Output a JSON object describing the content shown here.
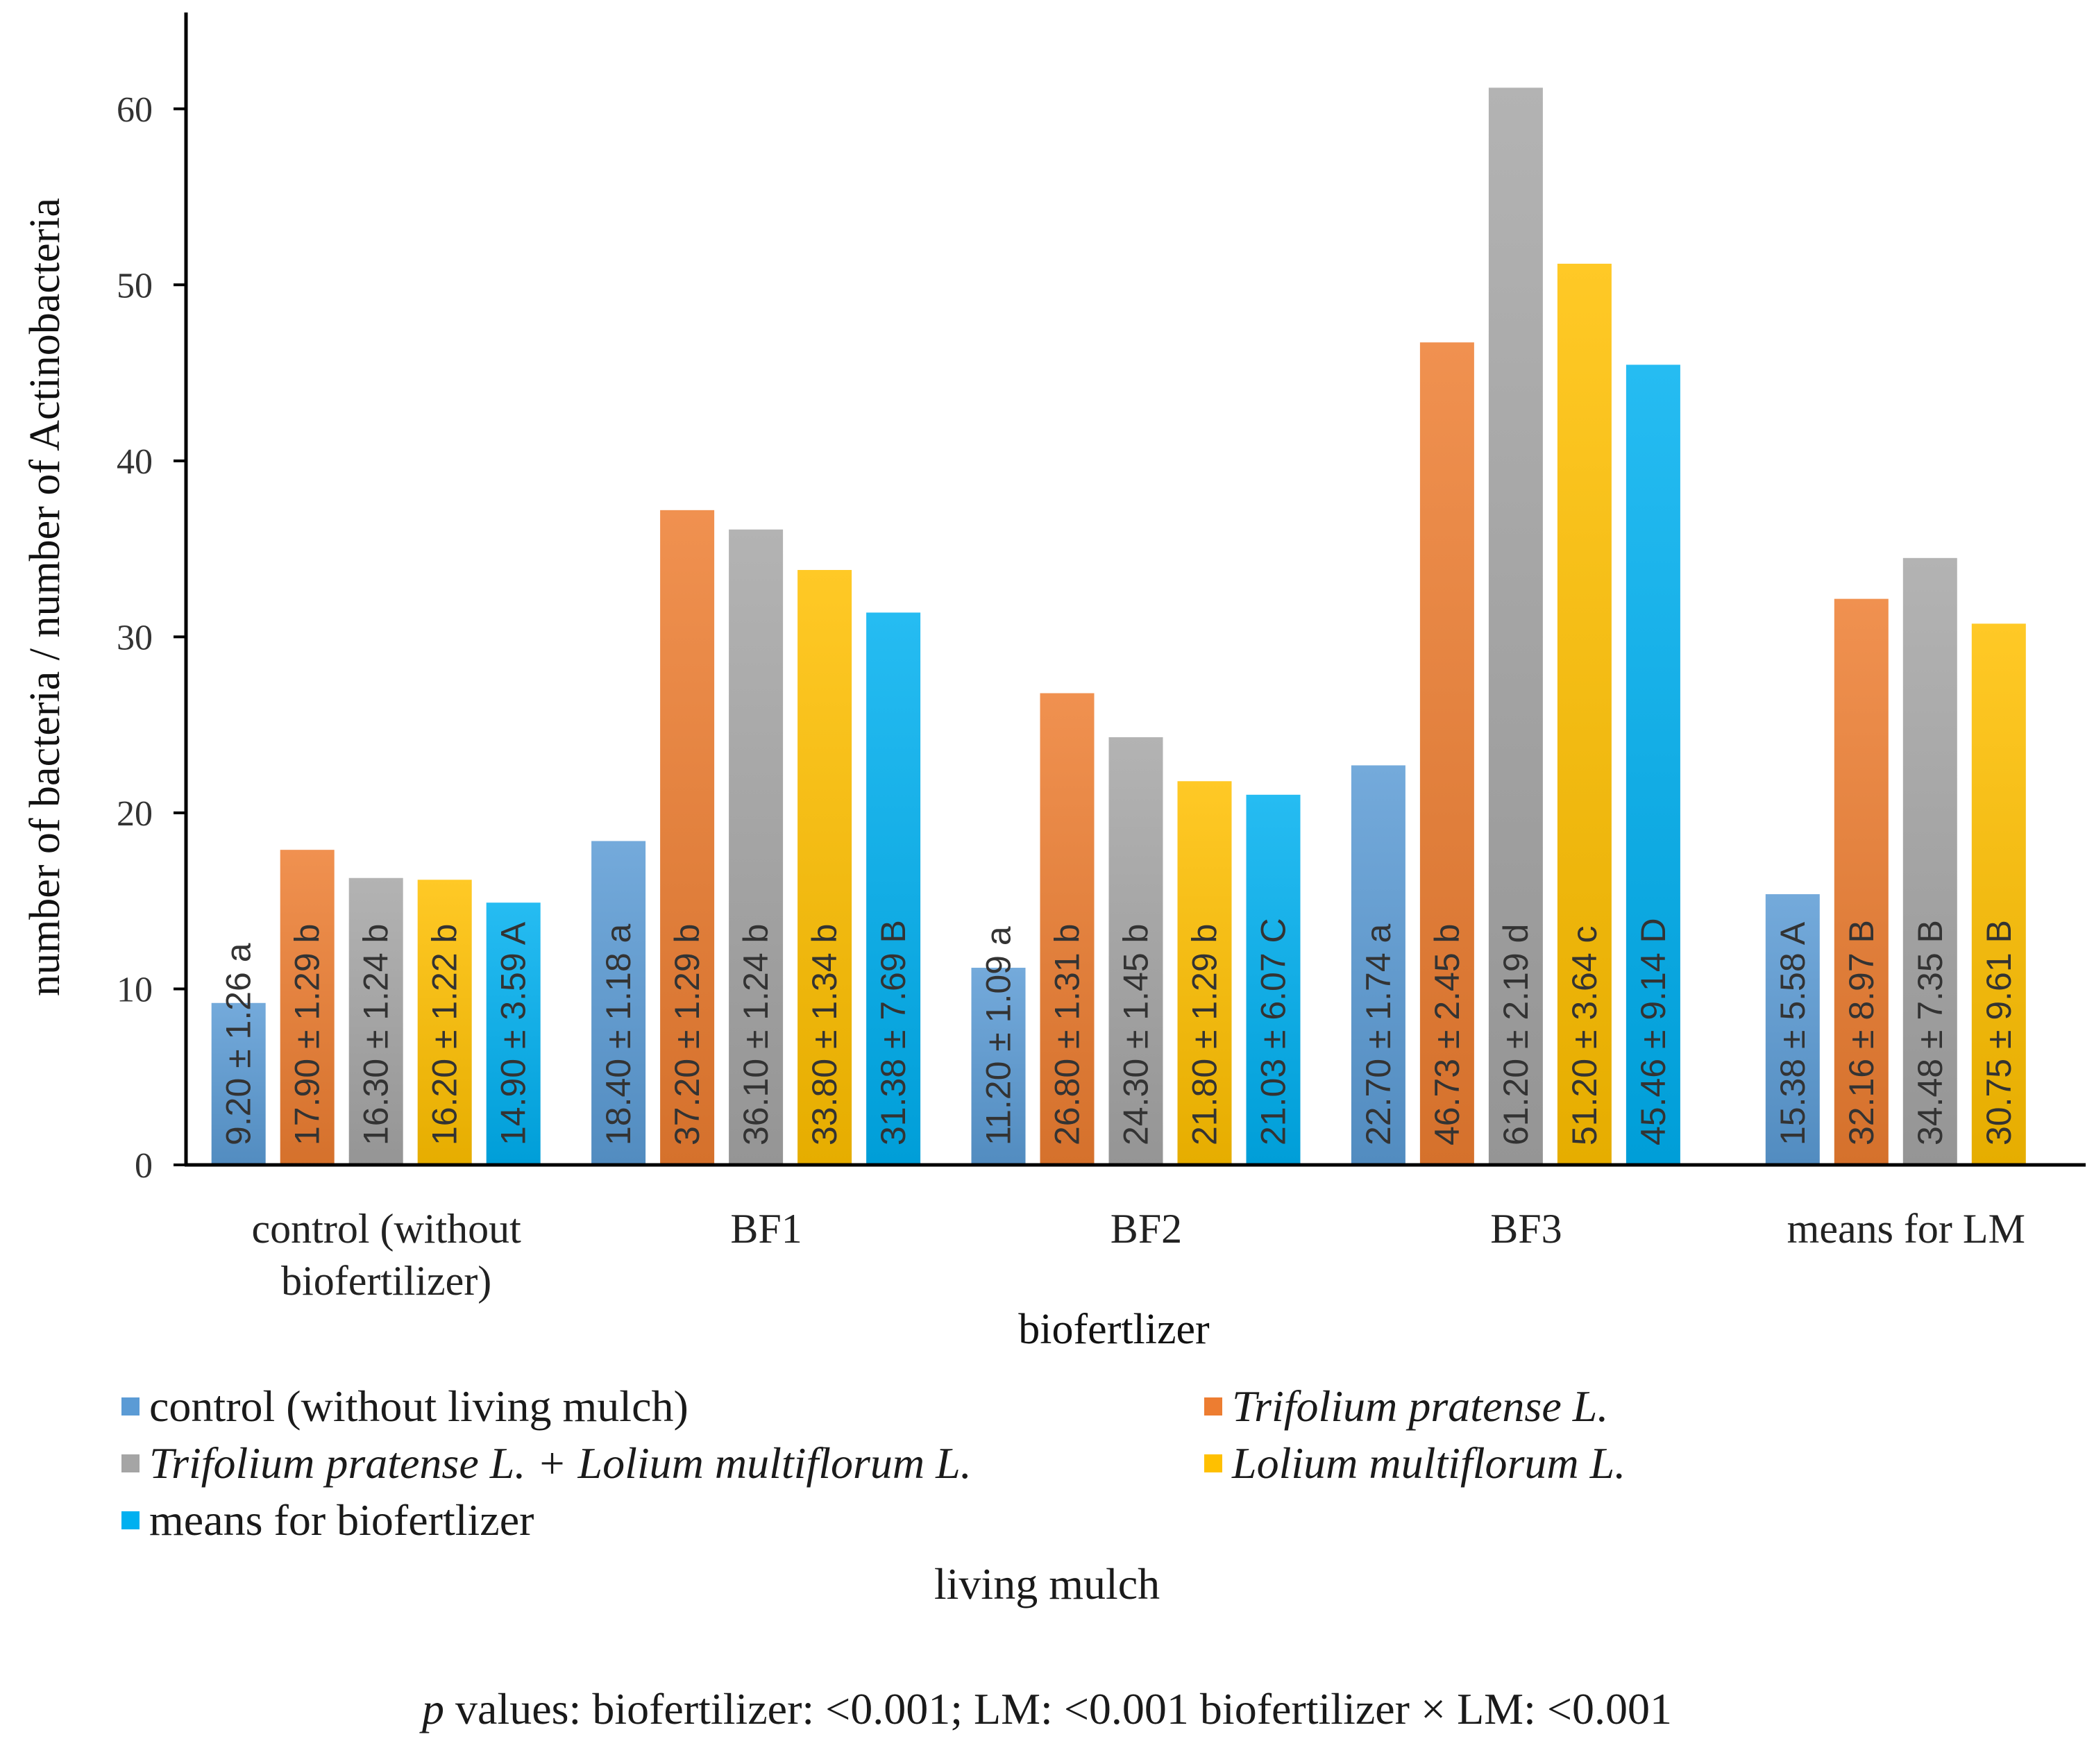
{
  "chart_data": {
    "type": "bar",
    "categories": [
      {
        "line1": "control (without",
        "line2": "biofertilizer)"
      },
      {
        "line1": "BF1",
        "line2": ""
      },
      {
        "line1": "BF2",
        "line2": ""
      },
      {
        "line1": "BF3",
        "line2": ""
      },
      {
        "line1": "means for LM",
        "line2": ""
      }
    ],
    "series": [
      {
        "name": "control (without living mulch)",
        "italic": false,
        "color": "#5b9bd5",
        "values": [
          9.2,
          18.4,
          11.2,
          22.7,
          15.38
        ],
        "labels": [
          "9.20 ± 1.26 a",
          "18.40 ± 1.18 a",
          "11.20 ± 1.09 a",
          "22.70 ± 1.74 a",
          "15.38 ± 5.58 A"
        ]
      },
      {
        "name": "Trifolium pratense L.",
        "italic": true,
        "color": "#ed7d31",
        "values": [
          17.9,
          37.2,
          26.8,
          46.73,
          32.16
        ],
        "labels": [
          "17.90 ± 1.29 b",
          "37.20 ± 1.29 b",
          "26.80 ± 1.31 b",
          "46.73 ± 2.45 b",
          "32.16 ± 8.97 B"
        ]
      },
      {
        "name": "Trifolium pratense L. + Lolium multiflorum L.",
        "italic": true,
        "color": "#a5a5a5",
        "values": [
          16.3,
          36.1,
          24.3,
          61.2,
          34.48
        ],
        "labels": [
          "16.30 ± 1.24 b",
          "36.10 ± 1.24 b",
          "24.30 ± 1.45 b",
          "61.20 ± 2.19 d",
          "34.48 ± 7.35 B"
        ]
      },
      {
        "name": "Lolium multiflorum L.",
        "italic": true,
        "color": "#ffc000",
        "values": [
          16.2,
          33.8,
          21.8,
          51.2,
          30.75
        ],
        "labels": [
          "16.20 ± 1.22 b",
          "33.80 ± 1.34 b",
          "21.80 ± 1.29 b",
          "51.20 ± 3.64 c",
          "30.75 ± 9.61 B"
        ]
      },
      {
        "name": "means for biofertlizer",
        "italic": false,
        "color": "#00b0f0",
        "values": [
          14.9,
          31.38,
          21.03,
          45.46,
          null
        ],
        "labels": [
          "14.90 ± 3.59 A",
          "31.38 ± 7.69 B",
          "21.03 ± 6.07 C",
          "45.46 ± 9.14 D",
          null
        ]
      }
    ],
    "xlabel": "biofertlizer",
    "ylabel": "number of bacteria / number of Actinobacteria",
    "ylim": [
      0,
      65
    ],
    "yticks": [
      0,
      10,
      20,
      30,
      40,
      50,
      60
    ],
    "legend_title": "living  mulch",
    "legend_position": "bottom"
  },
  "footnote": {
    "p": "p",
    "text": " values: biofertilizer: <0.001; LM: <0.001 biofertilizer × LM: <0.001"
  }
}
